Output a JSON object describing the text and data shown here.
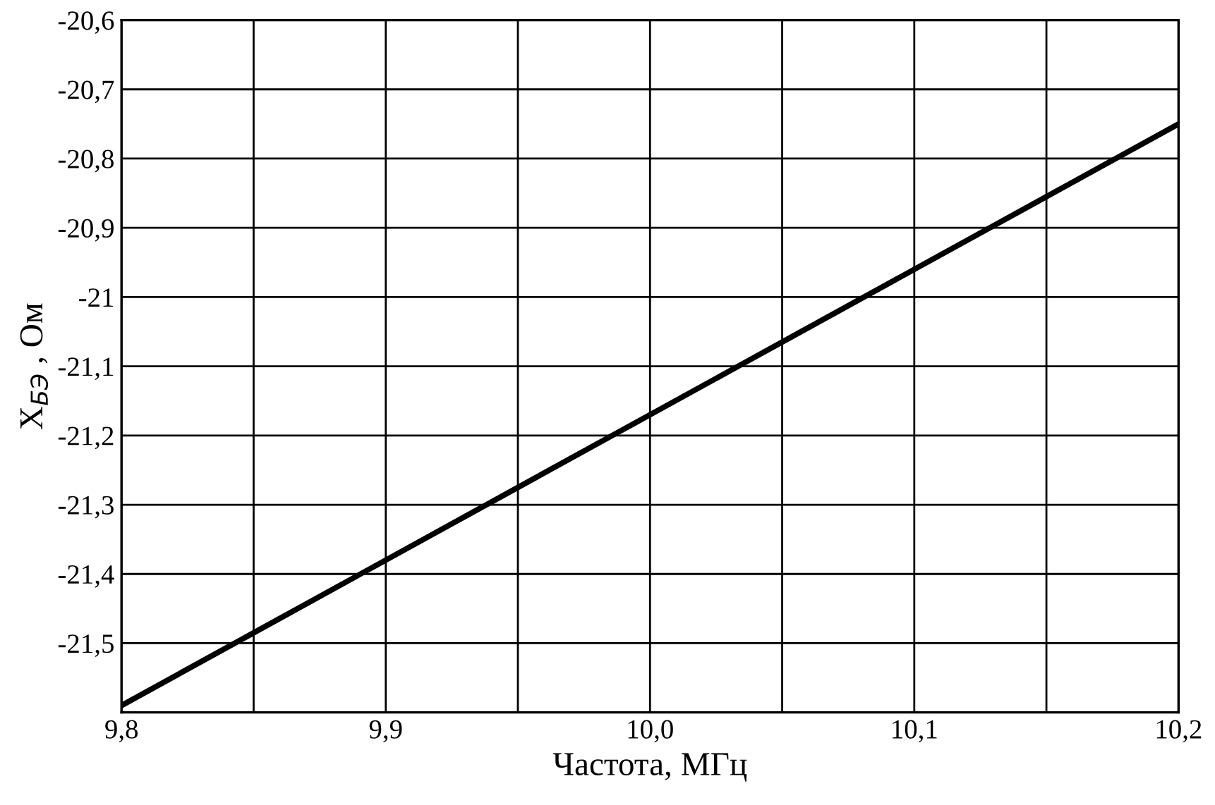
{
  "chart_data": {
    "type": "line",
    "xlabel": "Частота, МГц",
    "ylabel": "X$_{БЭ}$ , Ом",
    "x": [
      9.8,
      9.85,
      9.9,
      9.95,
      10.0,
      10.05,
      10.1,
      10.15,
      10.2
    ],
    "series": [
      {
        "color": "#000000",
        "values": [
          -21.59,
          -21.485,
          -21.38,
          -21.275,
          -21.17,
          -21.065,
          -20.96,
          -20.855,
          -20.75
        ]
      }
    ],
    "xlim": [
      9.8,
      10.2
    ],
    "ylim": [
      -21.6,
      -20.6
    ],
    "xticks": [
      {
        "value": 9.8,
        "label": "9,8"
      },
      {
        "value": 9.85,
        "label": null
      },
      {
        "value": 9.9,
        "label": "9,9"
      },
      {
        "value": 9.95,
        "label": null
      },
      {
        "value": 10.0,
        "label": "10,0"
      },
      {
        "value": 10.05,
        "label": null
      },
      {
        "value": 10.1,
        "label": "10,1"
      },
      {
        "value": 10.15,
        "label": null
      },
      {
        "value": 10.2,
        "label": "10,2"
      }
    ],
    "yticks": [
      {
        "value": -21.6,
        "label": null
      },
      {
        "value": -21.5,
        "label": "-21,5"
      },
      {
        "value": -21.4,
        "label": "-21,4"
      },
      {
        "value": -21.3,
        "label": "-21,3"
      },
      {
        "value": -21.2,
        "label": "-21,2"
      },
      {
        "value": -21.1,
        "label": "-21,1"
      },
      {
        "value": -21.0,
        "label": "-21"
      },
      {
        "value": -20.9,
        "label": "-20,9"
      },
      {
        "value": -20.8,
        "label": "-20,8"
      },
      {
        "value": -20.7,
        "label": "-20,7"
      },
      {
        "value": -20.6,
        "label": "-20,6"
      }
    ],
    "grid": true,
    "line_style": "solid"
  }
}
